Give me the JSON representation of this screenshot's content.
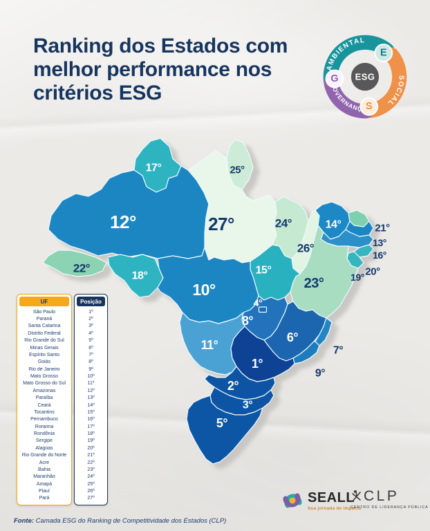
{
  "title": {
    "line1": "Ranking dos Estados com",
    "line2": "melhor performance nos",
    "line3": "critérios ESG"
  },
  "colors": {
    "title_navy": "#16355f",
    "background_paper": "#ebeae7",
    "table_header_yellow": "#f5a81c",
    "table_header_navy": "#17365d",
    "table_text_navy": "#1d3c6e",
    "map_border": "#eef9fd",
    "map_shadow_gray": "#c6c4c0",
    "map_label_navy": "#14386b"
  },
  "esg_badge": {
    "center_text": "ESG",
    "center_bg": "#58585a",
    "segments": [
      {
        "label": "AMBIENTAL",
        "letter": "E",
        "arc_color": "#17949c",
        "letter_bg": "#cfe9e7",
        "letter_color": "#0f7d85"
      },
      {
        "label": "SOCIAL",
        "letter": "S",
        "arc_color": "#ef9149",
        "letter_bg": "#fdeedd",
        "letter_color": "#ef8f3f"
      },
      {
        "label": "GOVERNANÇA",
        "letter": "G",
        "arc_color": "#9165ad",
        "letter_bg": "#f7f3fb",
        "letter_color": "#8a5fb0"
      }
    ]
  },
  "map": {
    "labels": {
      "RR": "17°",
      "AP": "25°",
      "AM": "12°",
      "PA": "27°",
      "MA": "24°",
      "PI": "26°",
      "CE": "14°",
      "RN": "21°",
      "PB": "13°",
      "PE": "16°",
      "AL": "20°",
      "SE": "19°",
      "BA": "23°",
      "TO": "15°",
      "AC": "22°",
      "RO": "18°",
      "MT": "10°",
      "GO": "8°",
      "DF": "4°",
      "MG": "6°",
      "ES": "7°",
      "RJ": "9°",
      "MS": "11°",
      "SP": "1°",
      "PR": "2°",
      "SC": "3°",
      "RS": "5°"
    },
    "state_colors": {
      "SP": "#0c4394",
      "PR": "#0d55a4",
      "SC": "#0d55a4",
      "RS": "#0e57a6",
      "DF": "#1e6db4",
      "MG": "#1a66b0",
      "GO": "#2173bb",
      "ES": "#2085c5",
      "RJ": "#1e7cbe",
      "MT": "#1b86c3",
      "AM": "#1b86c3",
      "CE": "#1f88c5",
      "PB": "#1f86c2",
      "PE": "#2a90c7",
      "MS": "#4aa2d3",
      "TO": "#2cb1bf",
      "RR": "#2eb3c0",
      "RO": "#2fb4c1",
      "SE": "#34b5bd",
      "AL": "#36b6be",
      "RN": "#7ed0b1",
      "AC": "#8bd3b3",
      "BA": "#a8ddc1",
      "MA": "#c6ead1",
      "AP": "#cdecd7",
      "PI": "#e2f4e4",
      "PA": "#e9f7ea"
    }
  },
  "table": {
    "header_uf": "UF",
    "header_position": "Posição",
    "rows": [
      {
        "uf": "São Paulo",
        "pos": "1º"
      },
      {
        "uf": "Paraná",
        "pos": "2º"
      },
      {
        "uf": "Santa Catarina",
        "pos": "3º"
      },
      {
        "uf": "Distrito Federal",
        "pos": "4º"
      },
      {
        "uf": "Rio Grande do Sul",
        "pos": "5º"
      },
      {
        "uf": "Minas Gerais",
        "pos": "6º"
      },
      {
        "uf": "Espírito Santo",
        "pos": "7º"
      },
      {
        "uf": "Goiás",
        "pos": "8º"
      },
      {
        "uf": "Rio de Janeiro",
        "pos": "9º"
      },
      {
        "uf": "Mato Grosso",
        "pos": "10º"
      },
      {
        "uf": "Mato Grosso do Sul",
        "pos": "11º"
      },
      {
        "uf": "Amazonas",
        "pos": "12º"
      },
      {
        "uf": "Paraíba",
        "pos": "13º"
      },
      {
        "uf": "Ceará",
        "pos": "14º"
      },
      {
        "uf": "Tocantins",
        "pos": "15º"
      },
      {
        "uf": "Pernambuco",
        "pos": "16º"
      },
      {
        "uf": "Roraima",
        "pos": "17º"
      },
      {
        "uf": "Rondônia",
        "pos": "18º"
      },
      {
        "uf": "Sergipe",
        "pos": "19º"
      },
      {
        "uf": "Alagoas",
        "pos": "20º"
      },
      {
        "uf": "Rio Grande do Norte",
        "pos": "21º"
      },
      {
        "uf": "Acre",
        "pos": "22º"
      },
      {
        "uf": "Bahia",
        "pos": "23º"
      },
      {
        "uf": "Maranhão",
        "pos": "24º"
      },
      {
        "uf": "Amapá",
        "pos": "25º"
      },
      {
        "uf": "Piauí",
        "pos": "26º"
      },
      {
        "uf": "Pará",
        "pos": "27º"
      }
    ]
  },
  "footer": {
    "source_label": "Fonte:",
    "source_text": "Camada ESG do Ranking de Competitividade dos Estados (CLP)"
  },
  "logos": {
    "seall": {
      "name": "SEALL",
      "tagline": "Sua jornada de impacto",
      "icon_top_color": "#2ba8a2",
      "icon_bottom_color": "#7b5ea7",
      "icon_dot_color": "#f2b22e"
    },
    "clp": {
      "name": "CLP",
      "subtitle": "CENTRO DE LIDERANÇA PÚBLICA",
      "color": "#3a3a3a"
    }
  }
}
